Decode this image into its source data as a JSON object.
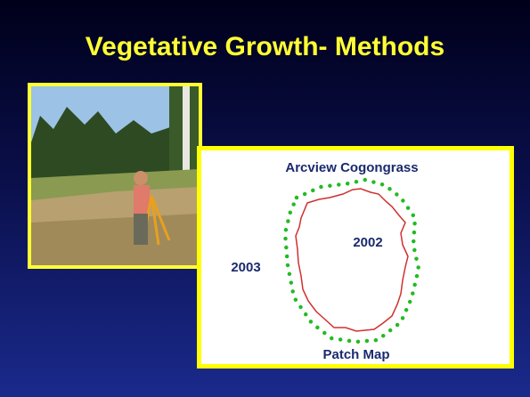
{
  "title": "Vegetative Growth- Methods",
  "panel": {
    "title": "Arcview Cogongrass",
    "inner_label": "2002",
    "outer_label": "2003",
    "caption": "Patch Map"
  }
}
